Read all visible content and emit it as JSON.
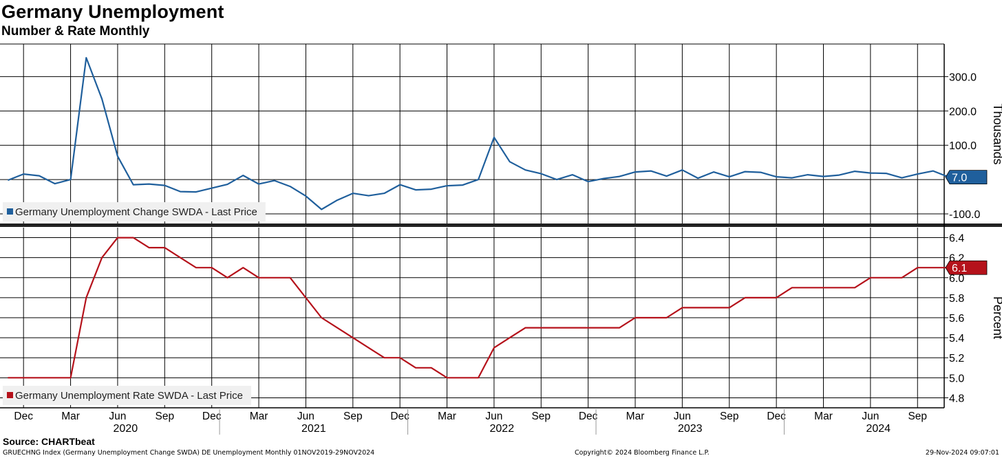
{
  "header": {
    "title": "Germany Unemployment",
    "subtitle": "Number & Rate Monthly"
  },
  "footer": {
    "source": "Source: CHARTbeat",
    "description": "GRUECHNG Index (Germany Unemployment Change SWDA) DE Unemployment  Monthly 01NOV2019-29NOV2024",
    "copyright": "Copyright© 2024 Bloomberg Finance L.P.",
    "timestamp": "29-Nov-2024 09:07:01"
  },
  "colors": {
    "change_series": "#1f5f9c",
    "rate_series": "#b5121b",
    "grid": "#000000"
  },
  "chart_data": [
    {
      "type": "line",
      "panel": "top",
      "ylabel": "Thousands",
      "ylim": [
        -130,
        395
      ],
      "yticks": [
        -100,
        100,
        200,
        300
      ],
      "ytick_labels": [
        "-100.0",
        "100.0",
        "200.0",
        "300.0"
      ],
      "grid": true,
      "legend_position": "bottom-left",
      "last_value_label": "7.0",
      "series": [
        {
          "name": "Germany Unemployment Change SWDA - Last Price",
          "x": [
            "2019-11",
            "2019-12",
            "2020-01",
            "2020-02",
            "2020-03",
            "2020-04",
            "2020-05",
            "2020-06",
            "2020-07",
            "2020-08",
            "2020-09",
            "2020-10",
            "2020-11",
            "2020-12",
            "2021-01",
            "2021-02",
            "2021-03",
            "2021-04",
            "2021-05",
            "2021-06",
            "2021-07",
            "2021-08",
            "2021-09",
            "2021-10",
            "2021-11",
            "2021-12",
            "2022-01",
            "2022-02",
            "2022-03",
            "2022-04",
            "2022-05",
            "2022-06",
            "2022-07",
            "2022-08",
            "2022-09",
            "2022-10",
            "2022-11",
            "2022-12",
            "2023-01",
            "2023-02",
            "2023-03",
            "2023-04",
            "2023-05",
            "2023-06",
            "2023-07",
            "2023-08",
            "2023-09",
            "2023-10",
            "2023-11",
            "2023-12",
            "2024-01",
            "2024-02",
            "2024-03",
            "2024-04",
            "2024-05",
            "2024-06",
            "2024-07",
            "2024-08",
            "2024-09",
            "2024-10",
            "2024-11"
          ],
          "values": [
            -2,
            16,
            11,
            -12,
            0,
            355,
            235,
            68,
            -15,
            -13,
            -17,
            -35,
            -36,
            -25,
            -14,
            12,
            -13,
            -3,
            -20,
            -48,
            -87,
            -60,
            -40,
            -47,
            -40,
            -15,
            -30,
            -28,
            -18,
            -16,
            0,
            123,
            52,
            28,
            17,
            0,
            14,
            -6,
            3,
            9,
            22,
            25,
            10,
            28,
            4,
            22,
            8,
            23,
            21,
            8,
            5,
            14,
            9,
            13,
            24,
            19,
            18,
            5,
            16,
            25,
            7
          ]
        }
      ]
    },
    {
      "type": "line",
      "panel": "bottom",
      "ylabel": "Percent",
      "ylim": [
        4.7,
        6.5
      ],
      "yticks": [
        4.8,
        5.0,
        5.2,
        5.4,
        5.6,
        5.8,
        6.0,
        6.2,
        6.4
      ],
      "ytick_labels": [
        "4.8",
        "5.0",
        "5.2",
        "5.4",
        "5.6",
        "5.8",
        "6.0",
        "6.2",
        "6.4"
      ],
      "grid": true,
      "legend_position": "bottom-left",
      "last_value_label": "6.1",
      "series": [
        {
          "name": "Germany Unemployment Rate SWDA - Last Price",
          "x": [
            "2019-11",
            "2019-12",
            "2020-01",
            "2020-02",
            "2020-03",
            "2020-04",
            "2020-05",
            "2020-06",
            "2020-07",
            "2020-08",
            "2020-09",
            "2020-10",
            "2020-11",
            "2020-12",
            "2021-01",
            "2021-02",
            "2021-03",
            "2021-04",
            "2021-05",
            "2021-06",
            "2021-07",
            "2021-08",
            "2021-09",
            "2021-10",
            "2021-11",
            "2021-12",
            "2022-01",
            "2022-02",
            "2022-03",
            "2022-04",
            "2022-05",
            "2022-06",
            "2022-07",
            "2022-08",
            "2022-09",
            "2022-10",
            "2022-11",
            "2022-12",
            "2023-01",
            "2023-02",
            "2023-03",
            "2023-04",
            "2023-05",
            "2023-06",
            "2023-07",
            "2023-08",
            "2023-09",
            "2023-10",
            "2023-11",
            "2023-12",
            "2024-01",
            "2024-02",
            "2024-03",
            "2024-04",
            "2024-05",
            "2024-06",
            "2024-07",
            "2024-08",
            "2024-09",
            "2024-10",
            "2024-11"
          ],
          "values": [
            5.0,
            5.0,
            5.0,
            5.0,
            5.0,
            5.8,
            6.2,
            6.4,
            6.4,
            6.3,
            6.3,
            6.2,
            6.1,
            6.1,
            6.0,
            6.1,
            6.0,
            6.0,
            6.0,
            5.8,
            5.6,
            5.5,
            5.4,
            5.3,
            5.2,
            5.2,
            5.1,
            5.1,
            5.0,
            5.0,
            5.0,
            5.3,
            5.4,
            5.5,
            5.5,
            5.5,
            5.5,
            5.5,
            5.5,
            5.5,
            5.6,
            5.6,
            5.6,
            5.7,
            5.7,
            5.7,
            5.7,
            5.8,
            5.8,
            5.8,
            5.9,
            5.9,
            5.9,
            5.9,
            5.9,
            6.0,
            6.0,
            6.0,
            6.1,
            6.1,
            6.1
          ]
        }
      ]
    }
  ],
  "x_axis": {
    "month_ticks": [
      {
        "date": "2019-12",
        "label": "Dec"
      },
      {
        "date": "2020-03",
        "label": "Mar"
      },
      {
        "date": "2020-06",
        "label": "Jun"
      },
      {
        "date": "2020-09",
        "label": "Sep"
      },
      {
        "date": "2020-12",
        "label": "Dec"
      },
      {
        "date": "2021-03",
        "label": "Mar"
      },
      {
        "date": "2021-06",
        "label": "Jun"
      },
      {
        "date": "2021-09",
        "label": "Sep"
      },
      {
        "date": "2021-12",
        "label": "Dec"
      },
      {
        "date": "2022-03",
        "label": "Mar"
      },
      {
        "date": "2022-06",
        "label": "Jun"
      },
      {
        "date": "2022-09",
        "label": "Sep"
      },
      {
        "date": "2022-12",
        "label": "Dec"
      },
      {
        "date": "2023-03",
        "label": "Mar"
      },
      {
        "date": "2023-06",
        "label": "Jun"
      },
      {
        "date": "2023-09",
        "label": "Sep"
      },
      {
        "date": "2023-12",
        "label": "Dec"
      },
      {
        "date": "2024-03",
        "label": "Mar"
      },
      {
        "date": "2024-06",
        "label": "Jun"
      },
      {
        "date": "2024-09",
        "label": "Sep"
      }
    ],
    "year_labels": [
      "2020",
      "2021",
      "2022",
      "2023",
      "2024"
    ]
  }
}
